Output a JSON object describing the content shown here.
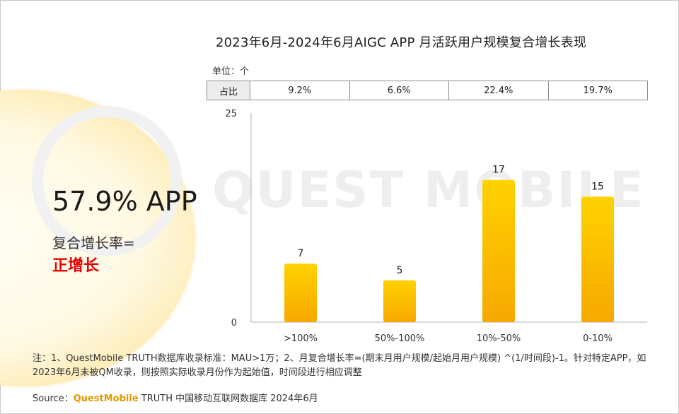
{
  "title": "2023年6月-2024年6月AIGC APP 月活跃用户规模复合增长表现",
  "unit": "单位：个",
  "share_row": {
    "label": "占比",
    "values": [
      "9.2%",
      "6.6%",
      "22.4%",
      "19.7%"
    ]
  },
  "highlight": {
    "percent": "57.9% APP",
    "rate_label": "复合增长率=",
    "rate_value": "正增长"
  },
  "watermark": "QUEST MOBILE",
  "chart_data": {
    "type": "bar",
    "categories": [
      ">100%",
      "50%-100%",
      "10%-50%",
      "0-10%"
    ],
    "values": [
      7,
      5,
      17,
      15
    ],
    "ylim": [
      0,
      25
    ],
    "yticks": [
      0,
      25
    ],
    "xlabel": "",
    "ylabel": "",
    "grid": false,
    "bar_color_top": "#ffd200",
    "bar_color_bottom": "#f7a800"
  },
  "note": "注：1、QuestMobile TRUTH数据库收录标准：MAU>1万；2、月复合增长率=(期末月用户规模/起始月用户规模) ^(1/时间段)-1。针对特定APP，如2023年6月未被QM收录，则按照实际收录月份作为起始值，时间段进行相应调整",
  "source": {
    "prefix": "Source：",
    "brand": "QuestMobile",
    "rest": " TRUTH 中国移动互联网数据库 2024年6月"
  }
}
